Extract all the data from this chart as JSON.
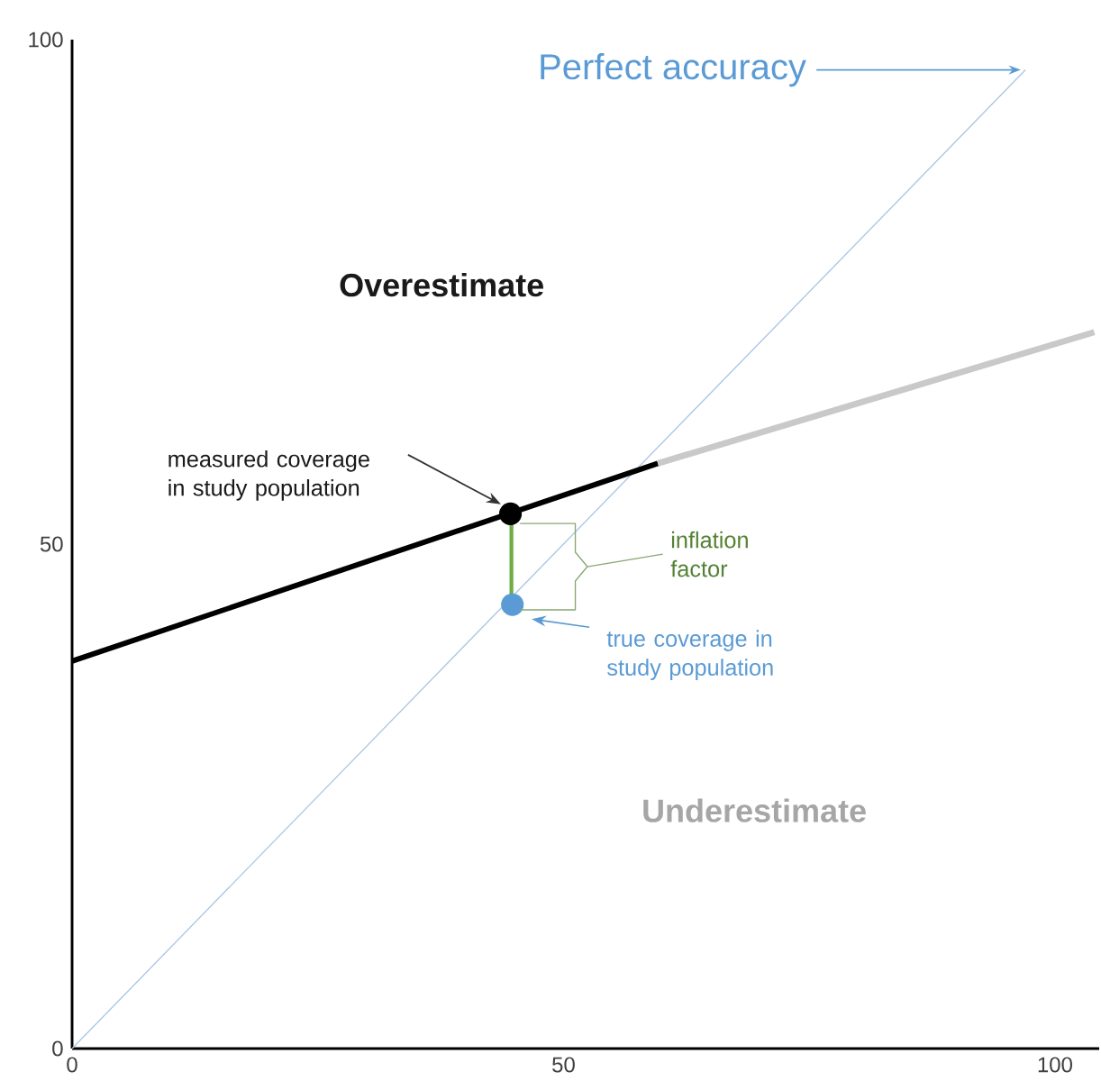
{
  "chart_data": {
    "type": "line",
    "xlim": [
      0,
      104.5
    ],
    "ylim": [
      0,
      100
    ],
    "xticks": [
      0,
      50,
      100
    ],
    "yticks": [
      0,
      50,
      100
    ],
    "grid": false,
    "series": [
      {
        "color": "#a9c6e6",
        "x": [
          0,
          97
        ],
        "values": [
          0,
          97
        ]
      },
      {
        "color": "#000000",
        "x": [
          0,
          59.6
        ],
        "values": [
          38.4,
          58
        ]
      },
      {
        "color": "#c9c9c9",
        "x": [
          59.6,
          104
        ],
        "values": [
          58,
          71
        ]
      },
      {
        "color": "#70ad47",
        "x": [
          44.7,
          44.7
        ],
        "values": [
          44,
          53
        ]
      },
      {
        "type": "scatter",
        "color": "#000000",
        "x": [
          44.6
        ],
        "values": [
          53
        ]
      },
      {
        "type": "scatter",
        "color": "#5b9bd5",
        "x": [
          44.8
        ],
        "values": [
          44
        ]
      }
    ],
    "annotations": [
      {
        "text": "Perfect accuracy",
        "x": 97,
        "y": 97
      },
      "Overestimate",
      "Underestimate",
      "measured coverage in study population",
      "inflation factor",
      "true coverage in study population"
    ]
  }
}
